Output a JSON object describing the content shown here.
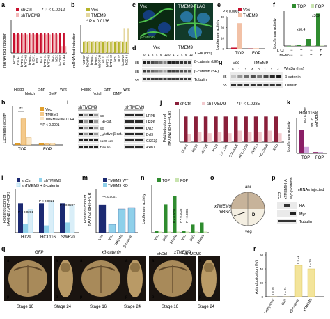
{
  "colors": {
    "red": "#c8102e",
    "pink": "#f2b8b8",
    "olive": "#b5b42a",
    "tan": "#e4d7a0",
    "navy": "#1c2a72",
    "lightblue": "#8fd0ea",
    "green": "#2f8c2f",
    "lightgreen": "#c9e4b0",
    "purple": "#8a1f66",
    "lilac": "#cfa8dd",
    "orange": "#f29221",
    "gray": "#888888"
  },
  "panels": {
    "a": {
      "letter": "a",
      "ylabel": "mRNA fold induction",
      "ylabel2": "(qRT–PCR)",
      "legend": [
        "shCtrl",
        "shTMEM9"
      ],
      "note": "* P < 0.0012",
      "categories": [
        "hCTIP",
        "hTCF1",
        "hPTCH1",
        "hPTCH2",
        "hHES1",
        "hHEY1",
        "hGL1",
        "hGLI1",
        "hPTCH1",
        "hPTCH2",
        "hID1",
        "hID2",
        "hAXIN2",
        "hCD44"
      ],
      "ns": "NS",
      "groups": [
        "Hippo",
        "Notch",
        "Shh",
        "BMP",
        "Wnt"
      ]
    },
    "b": {
      "letter": "b",
      "ylabel": "mRNA fold induction",
      "ylabel2": "(qRT–PCR)",
      "legend": [
        "Vec",
        "TMEM9"
      ],
      "note": "* P < 0.0136",
      "categories": [
        "hCTGF",
        "hCYR61",
        "hHES1",
        "hHEY1",
        "hNOTCH",
        "hGLI1",
        "hPTCH1",
        "hPTCH2",
        "hID1",
        "hID2",
        "hAXIN2",
        "hCD44"
      ],
      "groups": [
        "Hippo",
        "Notch",
        "Shh",
        "BMP",
        "Wnt"
      ],
      "ns": "NS"
    },
    "c": {
      "letter": "c",
      "img1": "Vec",
      "img2": "TMEM9-FLAG",
      "stain": "β-catenin"
    },
    "d": {
      "letter": "d",
      "vec": "Vec",
      "tm": "TMEM9",
      "chx": "CHX (hrs)",
      "times": [
        "0",
        "1",
        "2",
        "4",
        "6",
        "12",
        "0",
        "1",
        "2",
        "4",
        "6",
        "12"
      ],
      "rows": [
        "β-catenin (LE)",
        "β-catenin (SE)",
        "Tubulin"
      ],
      "mw": [
        "85",
        "85",
        "55"
      ]
    },
    "e": {
      "letter": "e",
      "ylabel": "Luciferase activity",
      "legend": [
        "Vec",
        "TMEM9"
      ],
      "note": "P < 0.0001",
      "categories": [
        "TOP",
        "FOP"
      ],
      "vec": [
        1,
        0.2
      ],
      "tm": [
        24,
        0.5
      ],
      "ylim": [
        0,
        30
      ],
      "ticks": [
        "0",
        "10",
        "20",
        "30"
      ]
    },
    "f": {
      "letter": "f",
      "ylabel": "Luciferase activity",
      "legend": [
        "TOP",
        "FOP"
      ],
      "labels": [
        "x50.4",
        "x309"
      ],
      "rowlabels": [
        "L Cl",
        "TMEM9"
      ],
      "ticks": [
        "0",
        "500",
        "1000",
        "1500"
      ],
      "top": [
        1,
        50,
        300,
        1400
      ],
      "fop": [
        1,
        1,
        1,
        2
      ]
    },
    "g": {
      "letter": "g",
      "vec": "Vec",
      "tm": "TMEM9",
      "wnt": "Wnt3a (hrs)",
      "times": [
        "0",
        "1",
        "2",
        "4",
        "0",
        "1",
        "2",
        "4"
      ],
      "rows": [
        "β-catenin",
        "Tubulin"
      ],
      "mw": [
        "85",
        "55"
      ]
    },
    "h": {
      "letter": "h",
      "ylabel": "Luciferase activity",
      "legend": [
        "Vec",
        "TMEM9",
        "TMEM9+DN-TCF4"
      ],
      "note": "* P < 0.0001",
      "categories": [
        "TOP",
        "FOP"
      ],
      "top": [
        1,
        18,
        5
      ],
      "fop": [
        1,
        1,
        1
      ],
      "ylim": [
        0,
        25
      ]
    },
    "i": {
      "letter": "i",
      "head1": "shTMEM9",
      "head2": "shTMEM9",
      "rowsL": [
        "SE",
        "LE",
        "SE",
        "LE",
        "p120-cat.",
        "Tubulin"
      ],
      "groupL": [
        "β-cat.",
        "Active β-cat."
      ],
      "rowsR": [
        "LRP5",
        "LRP6",
        "Dvl2",
        "Dvl3",
        "GSK3β",
        "Axin1"
      ],
      "mw": [
        "85",
        "85",
        "85",
        "55"
      ]
    },
    "j": {
      "letter": "j",
      "ylabel": "Fold induction of",
      "ylabel2": "hAXIN2 (qRT–PCR)",
      "legend": [
        "shCtrl",
        "shTMEM9"
      ],
      "note": "* P < 0.0285",
      "categories": [
        "DLD-1",
        "KM12",
        "HCT15",
        "HT29",
        "LS-174T",
        "COLO205",
        "HCC-1938",
        "SW620",
        "HCC2998",
        "RKO"
      ],
      "ctrl": [
        1,
        1,
        1,
        1,
        1,
        1,
        1,
        1,
        1,
        1
      ],
      "sh": [
        0.3,
        0.4,
        0.35,
        0.4,
        0.35,
        0.45,
        0.4,
        0.4,
        0.45,
        0.35
      ],
      "ticks": [
        "0",
        "0.5",
        "1.0"
      ]
    },
    "k": {
      "letter": "k",
      "title": "HCT116",
      "ylabel": "Luciferase activity",
      "legend": [
        "shCtrl",
        "shTMEM9"
      ],
      "note": "P < 0.0002",
      "categories": [
        "TOP",
        "FOP"
      ],
      "ctrl": [
        18,
        1
      ],
      "sh": [
        5,
        1
      ],
      "ylim": [
        0,
        25
      ]
    },
    "l": {
      "letter": "l",
      "ylabel": "Fold induction of",
      "ylabel2": "hAXIN2 (qRT–PCR)",
      "legend": [
        "shCtrl",
        "shTMEM9",
        "shTMEM9 + β-catenin"
      ],
      "categories": [
        "HT29",
        "HCT116",
        "SW620"
      ],
      "pvals": [
        "P < 0.0281",
        "P < 0.0021",
        "P < 0.0207"
      ],
      "ctrl": [
        1,
        1,
        1
      ],
      "sh": [
        0.3,
        0.25,
        0.35
      ],
      "rescue": [
        0.8,
        1.1,
        0.95
      ],
      "ticks": [
        "0",
        "0.5",
        "1.0"
      ]
    },
    "m": {
      "letter": "m",
      "ylabel": "Fold induction of",
      "ylabel2": "mAXIN2 (qRT–PCR)",
      "legend": [
        "TMEM9 WT",
        "TMEM9 KO"
      ],
      "pval": "P < 0.0001",
      "categories": [
        "Vec",
        "Vec",
        "TMEM9",
        "β-catenin"
      ],
      "values": [
        1,
        0.3,
        0.85,
        0.9
      ],
      "ticks": [
        "0",
        "0.5",
        "1.0"
      ]
    },
    "n": {
      "letter": "n",
      "ylabel": "Luciferase activity",
      "legend": [
        "TOP",
        "FOP"
      ],
      "pvals": [
        "P < 0.0005",
        "P < 0.0005",
        "P < 0.0005"
      ],
      "categories": [
        "Vec",
        "DvG",
        "Wnt3a",
        "Vec",
        "DvG",
        "Wnt3a"
      ],
      "groups": [
        "shCtrl",
        "shTMEM9"
      ],
      "top": [
        1,
        14,
        18,
        1,
        4,
        5
      ],
      "fop": [
        0.5,
        0.5,
        0.5,
        0.5,
        0.5,
        0.5
      ],
      "ylim": [
        0,
        20
      ]
    },
    "o": {
      "letter": "o",
      "ani": "ani",
      "veg": "veg",
      "mrna": "xTMEM9",
      "mrna2": "mRNA",
      "d": "D"
    },
    "p": {
      "letter": "p",
      "cols": [
        "GFP",
        "xTMEM9-HA",
        "Myc-β-catenin"
      ],
      "side": "mRNAs injected",
      "rows": [
        "HA",
        "Myc",
        "Tubulin"
      ]
    },
    "q": {
      "letter": "q",
      "groups": [
        "GFP",
        "xβ-catenin",
        "xTMEM9"
      ],
      "stages": [
        "Stage 16",
        "Stage 24",
        "Stage 16",
        "Stage 24",
        "Stage 16",
        "Stage 24"
      ],
      "marks": [
        "a",
        "p",
        "a",
        "p",
        "a",
        "p"
      ]
    },
    "r": {
      "letter": "r",
      "ylabel": "Axis duplication (%)",
      "categories": [
        "Uninjected",
        "GFP",
        "xβ-catenin",
        "xTMEM9"
      ],
      "ns": [
        "n = 26",
        "n = 21",
        "n = 21",
        "n = 19"
      ],
      "values": [
        0,
        0,
        45,
        40
      ],
      "ticks": [
        "0",
        "20",
        "40",
        "60"
      ]
    }
  }
}
